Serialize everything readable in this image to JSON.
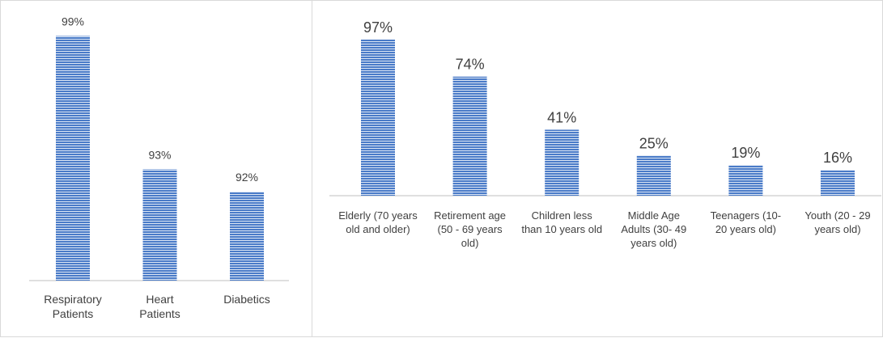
{
  "colors": {
    "bar": "#4a7bc8",
    "bar_stripe": "#dce6f4",
    "axis": "#bfbfbf",
    "text": "#404040",
    "border": "#d9d9d9"
  },
  "chart_data": [
    {
      "type": "bar",
      "categories": [
        [
          "Respiratory",
          "Patients"
        ],
        [
          "Heart",
          "Patients"
        ],
        [
          "Diabetics"
        ]
      ],
      "values": [
        99,
        93,
        92
      ],
      "value_labels": [
        "99%",
        "93%",
        "92%"
      ],
      "unit": "%",
      "ylim": [
        88,
        100
      ],
      "grid": false,
      "legend": "none",
      "axes_visible": false
    },
    {
      "type": "bar",
      "categories": [
        [
          "Elderly (70 years",
          "old and older)"
        ],
        [
          "Retirement age",
          "(50 - 69 years",
          "old)"
        ],
        [
          "Children less",
          "than 10 years old"
        ],
        [
          "Middle Age",
          "Adults (30- 49",
          "years old)"
        ],
        [
          "Teenagers (10-",
          "20 years old)"
        ],
        [
          "Youth (20 - 29",
          "years old)"
        ]
      ],
      "values": [
        97,
        74,
        41,
        25,
        19,
        16
      ],
      "value_labels": [
        "97%",
        "74%",
        "41%",
        "25%",
        "19%",
        "16%"
      ],
      "unit": "%",
      "ylim": [
        0,
        100
      ],
      "grid": false,
      "legend": "none",
      "axes_visible": false
    }
  ]
}
